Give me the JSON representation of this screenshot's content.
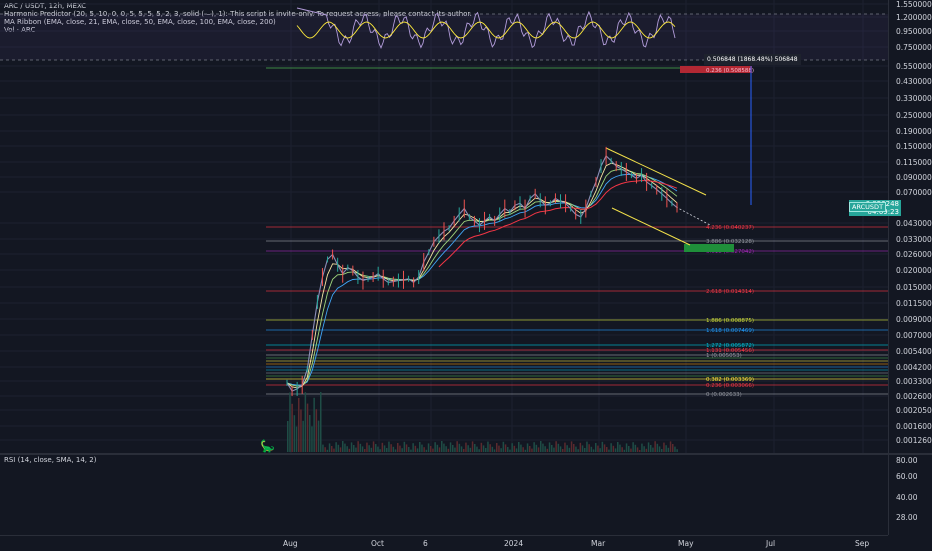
{
  "legend": {
    "title": "ARC / USDT, 12h, MEXC",
    "harmonic": "Harmonic Predictor (20, 5, 10, 0, 0, 5, 5, 5, 5, 2, 3, solid (—), 1): This script is invite-only. To request access, please contact its author.",
    "ma": "MA Ribbon (EMA, close, 21, EMA, close, 50, EMA, close, 100, EMA, close, 200)",
    "vol": "Vol · ARC"
  },
  "rsi_legend": "RSI (14, close, SMA, 14, 2)",
  "current_price": {
    "symbol": "ARCUSDT",
    "value": "0.056248",
    "countdown": "04:09:23"
  },
  "measure_label": "0.506848 (1868.48%) 506848",
  "price_axis": [
    "1.550000",
    "1.200000",
    "0.950000",
    "0.750000",
    "0.550000",
    "0.430000",
    "0.330000",
    "0.250000",
    "0.190000",
    "0.150000",
    "0.115000",
    "0.090000",
    "0.070000",
    "0.043000",
    "0.033000",
    "0.026000",
    "0.020000",
    "0.015000",
    "0.011500",
    "0.009000",
    "0.007000",
    "0.005400",
    "0.004200",
    "0.003300",
    "0.002600",
    "0.002050",
    "0.001600",
    "0.001260"
  ],
  "rsi_axis": [
    "80.00",
    "60.00",
    "40.00",
    "28.00"
  ],
  "time_axis": [
    "Aug",
    "Oct",
    "6",
    "2024",
    "Mar",
    "May",
    "Jul",
    "Sep"
  ],
  "fib_levels": [
    {
      "label": "4.236 (0.040237)",
      "color": "#f23645"
    },
    {
      "label": "3.886 (0.032128)",
      "color": "#9598a1"
    },
    {
      "label": "3.618 (0.027042)",
      "color": "#9c27b0"
    },
    {
      "label": "2.618 (0.014314)",
      "color": "#f23645"
    },
    {
      "label": "1.886 (0.008875)",
      "color": "#cddc39"
    },
    {
      "label": "1.618 (0.007469)",
      "color": "#2196f3"
    },
    {
      "label": "1.272 (0.005872)",
      "color": "#00bcd4"
    },
    {
      "label": "1.131 (0.005456)",
      "color": "#f23645"
    },
    {
      "label": "1 (0.005053)",
      "color": "#9598a1"
    },
    {
      "label": "0.382 (0.003369)",
      "color": "#ffeb3b"
    },
    {
      "label": "0.236 (0.003066)",
      "color": "#f23645"
    },
    {
      "label": "0 (0.002633)",
      "color": "#9598a1"
    }
  ],
  "target_label": "0.236 (0.508588)",
  "colors": {
    "up": "#26a69a",
    "down": "#ef5350",
    "price_line": "#8c8fb8",
    "ema21": "#f5e5a3",
    "ema50": "#9fd67c",
    "ema100": "#42a5f5",
    "ema200": "#f23645",
    "rsi": "#b39ddb",
    "rsi_ma": "#ffeb3b",
    "channel": "#f2e04a"
  },
  "chart_data": {
    "type": "line",
    "log_scale": true,
    "series": [
      {
        "values": [
          0.0032,
          0.0028,
          0.0029,
          0.0031,
          0.004,
          0.007,
          0.012,
          0.018,
          0.024,
          0.026,
          0.022,
          0.019,
          0.021,
          0.02,
          0.018,
          0.017,
          0.0175,
          0.018,
          0.019,
          0.0175,
          0.0165,
          0.0167,
          0.017,
          0.0172,
          0.0175,
          0.0165,
          0.018,
          0.023,
          0.027,
          0.032,
          0.035,
          0.038,
          0.04,
          0.045,
          0.05,
          0.055,
          0.048,
          0.045,
          0.042,
          0.045,
          0.048,
          0.045,
          0.05,
          0.055,
          0.052,
          0.058,
          0.06,
          0.055,
          0.065,
          0.07,
          0.063,
          0.058,
          0.06,
          0.065,
          0.062,
          0.06,
          0.055,
          0.05,
          0.048,
          0.055,
          0.07,
          0.085,
          0.11,
          0.13,
          0.12,
          0.11,
          0.105,
          0.1,
          0.095,
          0.09,
          0.095,
          0.085,
          0.08,
          0.075,
          0.07,
          0.065,
          0.06,
          0.056
        ]
      }
    ],
    "ylim": [
      0.00115,
      1.6
    ]
  }
}
